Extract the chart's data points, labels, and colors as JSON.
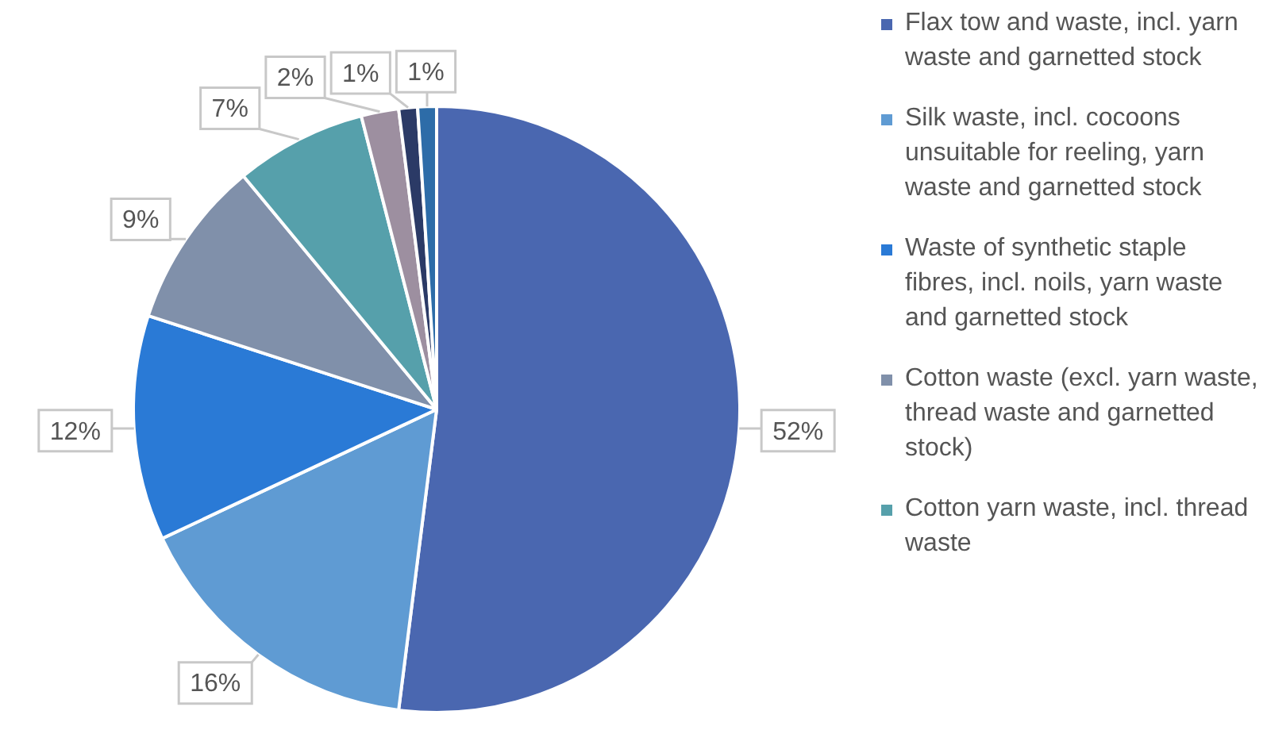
{
  "chart_data": {
    "type": "pie",
    "categories": [
      "Flax tow and waste, incl. yarn waste and garnetted stock",
      "Silk waste, incl. cocoons unsuitable for reeling, yarn waste and garnetted stock",
      "Waste of synthetic staple fibres, incl. noils, yarn waste and garnetted stock",
      "Cotton waste (excl. yarn waste, thread waste and garnetted stock)",
      "Cotton yarn waste, incl. thread waste",
      null,
      null,
      null
    ],
    "values": [
      52,
      16,
      12,
      9,
      7,
      2,
      1,
      1
    ],
    "value_labels": [
      "52%",
      "16%",
      "12%",
      "9%",
      "7%",
      "2%",
      "1%",
      "1%"
    ],
    "colors": [
      "#4a67b0",
      "#5f9bd3",
      "#2a7ad6",
      "#8090aa",
      "#56a0ab",
      "#9d8fa0",
      "#2b3a66",
      "#2d6ca8"
    ],
    "legend": "right"
  }
}
